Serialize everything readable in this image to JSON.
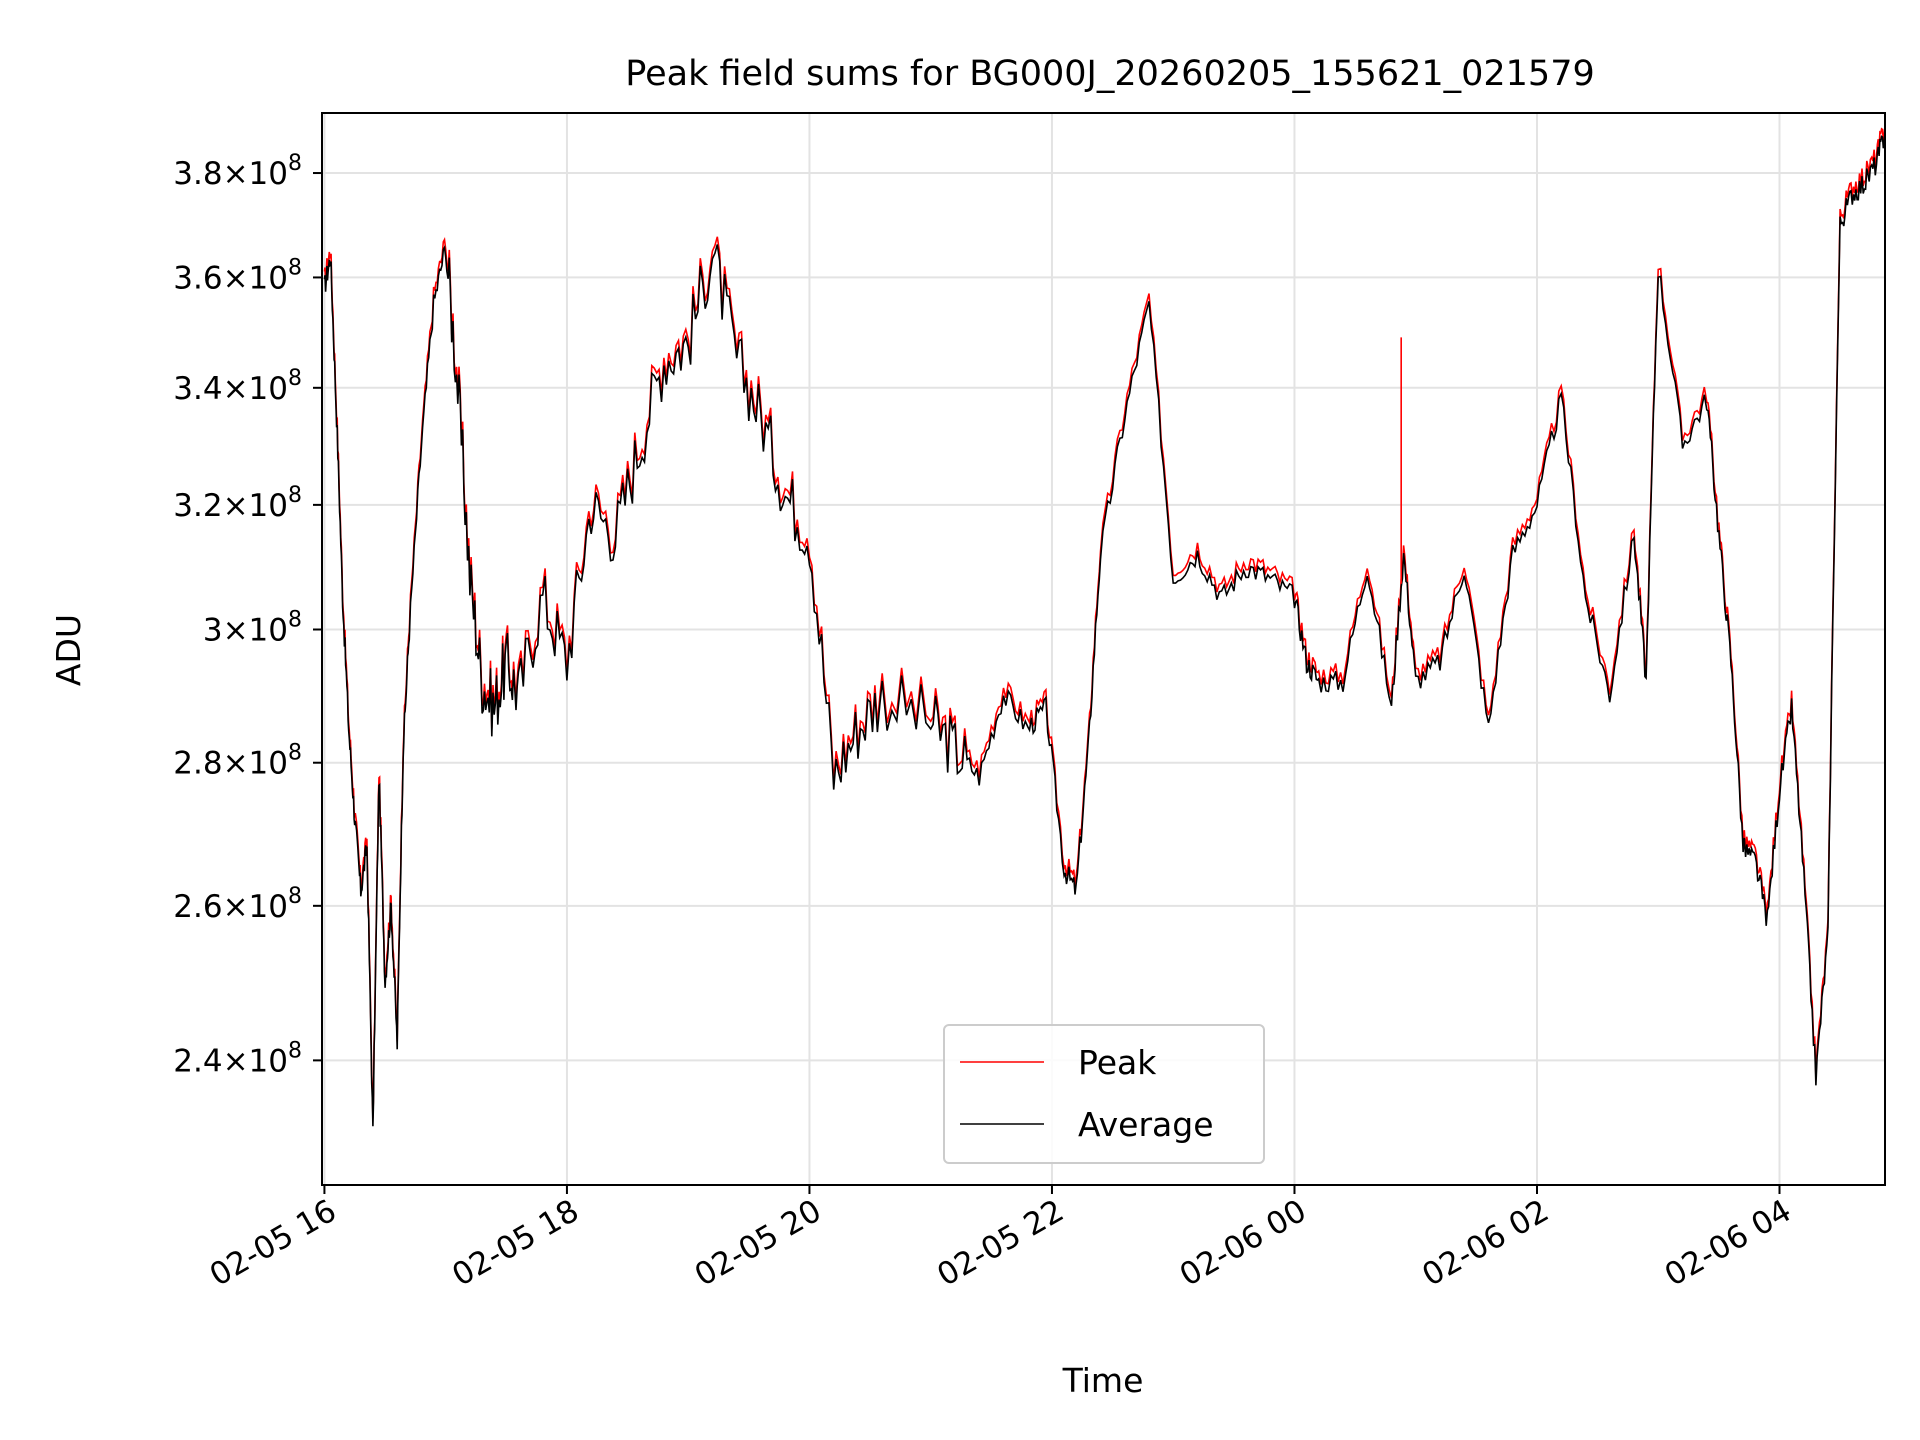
{
  "chart_data": {
    "type": "line",
    "title": "Peak field sums for BG000J_20260205_155621_021579",
    "xlabel": "Time",
    "ylabel": "ADU",
    "yscale": "log",
    "grid": true,
    "legend_position": "bottom-center",
    "x_unit": "hours since 02-05 16:00",
    "xlim": [
      -0.02,
      12.87
    ],
    "ylim": [
      225000000.0,
      392000000.0
    ],
    "x_ticks": [
      {
        "value": 0,
        "label": "02-05 16"
      },
      {
        "value": 2,
        "label": "02-05 18"
      },
      {
        "value": 4,
        "label": "02-05 20"
      },
      {
        "value": 6,
        "label": "02-05 22"
      },
      {
        "value": 8,
        "label": "02-06 00"
      },
      {
        "value": 10,
        "label": "02-06 02"
      },
      {
        "value": 12,
        "label": "02-06 04"
      }
    ],
    "y_ticks": [
      {
        "value": 240000000.0,
        "mantissa": "2.4",
        "exponent": "8"
      },
      {
        "value": 260000000.0,
        "mantissa": "2.6",
        "exponent": "8"
      },
      {
        "value": 280000000.0,
        "mantissa": "2.8",
        "exponent": "8"
      },
      {
        "value": 300000000.0,
        "mantissa": "3",
        "exponent": "8"
      },
      {
        "value": 320000000.0,
        "mantissa": "3.2",
        "exponent": "8"
      },
      {
        "value": 340000000.0,
        "mantissa": "3.4",
        "exponent": "8"
      },
      {
        "value": 360000000.0,
        "mantissa": "3.6",
        "exponent": "8"
      },
      {
        "value": 380000000.0,
        "mantissa": "3.8",
        "exponent": "8"
      }
    ],
    "tick_times": "×10",
    "series": [
      {
        "name": "Peak",
        "color": "#ff0000",
        "spikes": [
          {
            "x": 8.88,
            "y": 349000000.0
          }
        ]
      },
      {
        "name": "Average",
        "color": "#000000"
      }
    ],
    "x": [
      0.0,
      0.05,
      0.1,
      0.15,
      0.2,
      0.25,
      0.3,
      0.35,
      0.4,
      0.45,
      0.5,
      0.55,
      0.6,
      0.65,
      0.7,
      0.8,
      0.9,
      1.0,
      1.1,
      1.2,
      1.3,
      1.4,
      1.5,
      1.6,
      1.8,
      2.0,
      2.2,
      2.4,
      2.6,
      2.8,
      3.0,
      3.2,
      3.4,
      3.6,
      3.8,
      4.0,
      4.2,
      4.4,
      4.6,
      5.0,
      5.2,
      5.4,
      5.6,
      5.8,
      5.95,
      6.1,
      6.2,
      6.3,
      6.4,
      6.6,
      6.8,
      7.0,
      7.2,
      7.4,
      7.6,
      7.8,
      8.0,
      8.1,
      8.2,
      8.4,
      8.6,
      8.8,
      8.9,
      9.0,
      9.2,
      9.4,
      9.6,
      9.8,
      10.0,
      10.2,
      10.4,
      10.6,
      10.8,
      10.9,
      11.0,
      11.2,
      11.4,
      11.5,
      11.6,
      11.7,
      11.8,
      11.9,
      12.0,
      12.1,
      12.2,
      12.3,
      12.4,
      12.5,
      12.6,
      12.7,
      12.8,
      12.87
    ],
    "values": [
      358000000.0,
      364000000.0,
      335000000.0,
      305000000.0,
      285000000.0,
      272000000.0,
      262000000.0,
      268000000.0,
      231000000.0,
      278000000.0,
      250000000.0,
      260000000.0,
      242000000.0,
      282000000.0,
      300000000.0,
      330000000.0,
      355000000.0,
      366000000.0,
      340000000.0,
      308000000.0,
      292000000.0,
      288000000.0,
      295000000.0,
      290000000.0,
      305000000.0,
      295000000.0,
      320000000.0,
      315000000.0,
      330000000.0,
      345000000.0,
      348000000.0,
      365000000.0,
      345000000.0,
      335000000.0,
      322000000.0,
      315000000.0,
      278000000.0,
      285000000.0,
      290000000.0,
      286000000.0,
      282000000.0,
      278000000.0,
      290000000.0,
      285000000.0,
      288000000.0,
      265000000.0,
      262000000.0,
      282000000.0,
      312000000.0,
      335000000.0,
      355000000.0,
      308000000.0,
      312000000.0,
      305000000.0,
      310000000.0,
      308000000.0,
      305000000.0,
      295000000.0,
      292000000.0,
      292000000.0,
      310000000.0,
      288000000.0,
      312000000.0,
      292000000.0,
      295000000.0,
      310000000.0,
      285000000.0,
      312000000.0,
      320000000.0,
      338000000.0,
      305000000.0,
      290000000.0,
      315000000.0,
      292000000.0,
      362000000.0,
      330000000.0,
      338000000.0,
      315000000.0,
      295000000.0,
      268000000.0,
      266000000.0,
      258000000.0,
      276000000.0,
      288000000.0,
      264000000.0,
      238000000.0,
      256000000.0,
      370000000.0,
      376000000.0,
      378000000.0,
      382000000.0,
      388000000.0
    ]
  },
  "legend": {
    "peak_label": "Peak",
    "average_label": "Average"
  }
}
